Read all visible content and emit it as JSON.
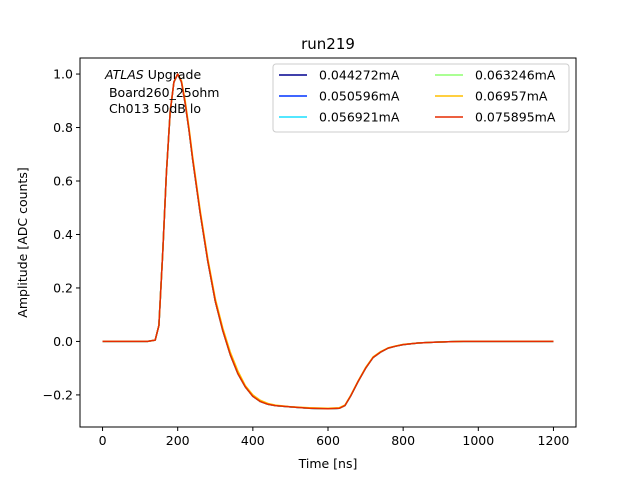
{
  "chart_data": {
    "type": "line",
    "title": "run219",
    "xlabel": "Time [ns]",
    "ylabel": "Amplitude [ADC counts]",
    "xlim": [
      -60,
      1260
    ],
    "ylim": [
      -0.32,
      1.06
    ],
    "xticks": [
      0,
      200,
      400,
      600,
      800,
      1000,
      1200
    ],
    "yticks": [
      -0.2,
      0.0,
      0.2,
      0.4,
      0.6,
      0.8,
      1.0
    ],
    "xtick_labels": [
      "0",
      "200",
      "400",
      "600",
      "800",
      "1000",
      "1200"
    ],
    "ytick_labels": [
      "−0.2",
      "0.0",
      "0.2",
      "0.4",
      "0.6",
      "0.8",
      "1.0"
    ],
    "grid": false,
    "legend_position": "top-right",
    "legend_columns": 2,
    "annotation": {
      "italic_part": "ATLAS",
      "rest_of_first_line": " Upgrade",
      "line2": " Board260_25ohm",
      "line3": " Ch013 50dB lo"
    },
    "x": [
      0,
      40,
      80,
      120,
      140,
      150,
      160,
      170,
      180,
      190,
      200,
      210,
      220,
      230,
      240,
      260,
      280,
      300,
      320,
      340,
      360,
      380,
      400,
      420,
      440,
      460,
      500,
      550,
      600,
      630,
      645,
      660,
      680,
      700,
      720,
      740,
      760,
      780,
      800,
      840,
      880,
      920,
      960,
      1000,
      1050,
      1100,
      1150,
      1200
    ],
    "series": [
      {
        "name": "0.044272mA",
        "color": "#00008f",
        "values": [
          0.0,
          0.0,
          0.0,
          0.0,
          0.005,
          0.06,
          0.33,
          0.63,
          0.86,
          0.97,
          1.0,
          0.97,
          0.89,
          0.79,
          0.68,
          0.48,
          0.3,
          0.15,
          0.04,
          -0.05,
          -0.12,
          -0.17,
          -0.205,
          -0.225,
          -0.235,
          -0.24,
          -0.245,
          -0.25,
          -0.252,
          -0.25,
          -0.24,
          -0.205,
          -0.15,
          -0.1,
          -0.06,
          -0.04,
          -0.025,
          -0.018,
          -0.012,
          -0.006,
          -0.003,
          -0.001,
          0.0,
          0.0,
          0.0,
          0.0,
          0.0,
          0.0
        ]
      },
      {
        "name": "0.050596mA",
        "color": "#0034ff",
        "values": [
          0.0,
          0.0,
          0.0,
          0.0,
          0.005,
          0.06,
          0.33,
          0.63,
          0.86,
          0.97,
          1.0,
          0.97,
          0.89,
          0.79,
          0.68,
          0.48,
          0.3,
          0.15,
          0.04,
          -0.05,
          -0.12,
          -0.17,
          -0.205,
          -0.225,
          -0.235,
          -0.24,
          -0.245,
          -0.25,
          -0.252,
          -0.25,
          -0.24,
          -0.205,
          -0.15,
          -0.1,
          -0.06,
          -0.04,
          -0.025,
          -0.018,
          -0.012,
          -0.006,
          -0.003,
          -0.001,
          0.0,
          0.0,
          0.0,
          0.0,
          0.0,
          0.0
        ]
      },
      {
        "name": "0.056921mA",
        "color": "#1adfff",
        "values": [
          0.0,
          0.0,
          0.0,
          0.0,
          0.005,
          0.06,
          0.33,
          0.63,
          0.86,
          0.97,
          1.0,
          0.97,
          0.89,
          0.79,
          0.68,
          0.48,
          0.3,
          0.15,
          0.04,
          -0.05,
          -0.12,
          -0.17,
          -0.205,
          -0.225,
          -0.235,
          -0.24,
          -0.245,
          -0.25,
          -0.252,
          -0.25,
          -0.24,
          -0.205,
          -0.15,
          -0.1,
          -0.06,
          -0.04,
          -0.025,
          -0.018,
          -0.012,
          -0.006,
          -0.003,
          -0.001,
          0.0,
          0.0,
          0.0,
          0.0,
          0.0,
          0.0
        ]
      },
      {
        "name": "0.063246mA",
        "color": "#8fff70",
        "values": [
          0.0,
          0.0,
          0.0,
          0.0,
          0.005,
          0.06,
          0.33,
          0.63,
          0.86,
          0.97,
          1.0,
          0.97,
          0.89,
          0.79,
          0.68,
          0.48,
          0.3,
          0.15,
          0.04,
          -0.05,
          -0.12,
          -0.17,
          -0.205,
          -0.225,
          -0.235,
          -0.24,
          -0.245,
          -0.25,
          -0.252,
          -0.25,
          -0.24,
          -0.205,
          -0.15,
          -0.1,
          -0.06,
          -0.04,
          -0.025,
          -0.018,
          -0.012,
          -0.006,
          -0.003,
          -0.001,
          0.0,
          0.0,
          0.0,
          0.0,
          0.0,
          0.0
        ]
      },
      {
        "name": "0.06957mA",
        "color": "#ffbf00",
        "values": [
          0.0,
          0.0,
          0.0,
          0.0,
          0.005,
          0.06,
          0.33,
          0.63,
          0.86,
          0.97,
          1.0,
          0.975,
          0.9,
          0.8,
          0.69,
          0.49,
          0.31,
          0.16,
          0.05,
          -0.04,
          -0.11,
          -0.165,
          -0.2,
          -0.22,
          -0.232,
          -0.238,
          -0.244,
          -0.248,
          -0.25,
          -0.248,
          -0.238,
          -0.203,
          -0.148,
          -0.098,
          -0.058,
          -0.038,
          -0.024,
          -0.017,
          -0.011,
          -0.006,
          -0.003,
          -0.001,
          0.0,
          0.0,
          0.0,
          0.0,
          0.0,
          0.0
        ]
      },
      {
        "name": "0.075895mA",
        "color": "#e62b00",
        "values": [
          0.0,
          0.0,
          0.0,
          0.0,
          0.005,
          0.06,
          0.33,
          0.63,
          0.86,
          0.97,
          1.0,
          0.97,
          0.89,
          0.79,
          0.68,
          0.48,
          0.3,
          0.15,
          0.04,
          -0.05,
          -0.12,
          -0.17,
          -0.205,
          -0.225,
          -0.235,
          -0.24,
          -0.245,
          -0.25,
          -0.252,
          -0.25,
          -0.24,
          -0.205,
          -0.15,
          -0.1,
          -0.06,
          -0.04,
          -0.025,
          -0.018,
          -0.012,
          -0.006,
          -0.003,
          -0.001,
          0.0,
          0.0,
          0.0,
          0.0,
          0.0,
          0.0
        ]
      }
    ]
  }
}
